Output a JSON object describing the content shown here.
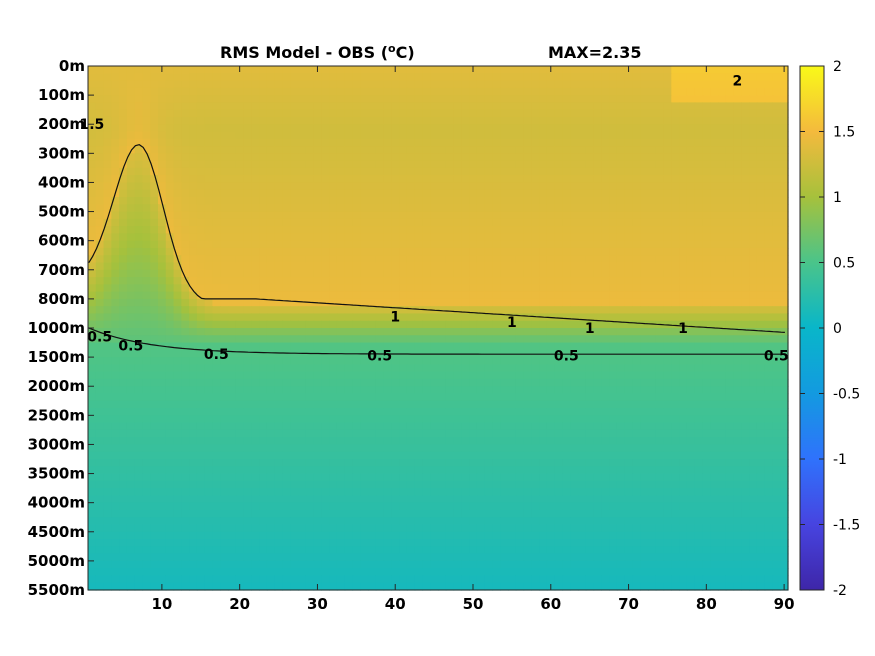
{
  "chart_data": {
    "type": "heatmap",
    "title": "RMS Model - OBS (",
    "title_unit": "o",
    "title_unit_suffix": "C)",
    "max_label": "MAX=2.35",
    "x_ticks": [
      "10",
      "20",
      "30",
      "40",
      "50",
      "60",
      "70",
      "80",
      "90"
    ],
    "x_tick_values": [
      10,
      20,
      30,
      40,
      50,
      60,
      70,
      80,
      90
    ],
    "xlim": [
      0.5,
      90.5
    ],
    "y_ticks": [
      "0m",
      "100m",
      "200m",
      "300m",
      "400m",
      "500m",
      "600m",
      "700m",
      "800m",
      "1000m",
      "1500m",
      "2000m",
      "2500m",
      "3000m",
      "3500m",
      "4000m",
      "4500m",
      "5000m",
      "5500m"
    ],
    "colorbar_ticks": [
      "2",
      "1.5",
      "1",
      "0.5",
      "0",
      "-0.5",
      "-1",
      "-1.5",
      "-2"
    ],
    "colorbar_tick_values": [
      2,
      1.5,
      1,
      0.5,
      0,
      -0.5,
      -1,
      -1.5,
      -2
    ],
    "clim": [
      -2,
      2
    ],
    "colormap": "parula",
    "contour_levels": [
      0.5,
      1,
      1.5,
      2
    ],
    "contour_labels": [
      {
        "text": "0.5",
        "x": 2,
        "level_index": 9.3
      },
      {
        "text": "0.5",
        "x": 6,
        "level_index": 9.6
      },
      {
        "text": "0.5",
        "x": 17,
        "level_index": 9.9
      },
      {
        "text": "0.5",
        "x": 38,
        "level_index": 9.95
      },
      {
        "text": "0.5",
        "x": 62,
        "level_index": 9.95
      },
      {
        "text": "0.5",
        "x": 89,
        "level_index": 9.95
      },
      {
        "text": "1",
        "x": 40,
        "level_index": 8.6
      },
      {
        "text": "1",
        "x": 55,
        "level_index": 8.8
      },
      {
        "text": "1",
        "x": 65,
        "level_index": 9.0
      },
      {
        "text": "1",
        "x": 77,
        "level_index": 9.0
      },
      {
        "text": "1.5",
        "x": 1,
        "level_index": 2
      },
      {
        "text": "2",
        "x": 84,
        "level_index": 0.5
      }
    ]
  }
}
